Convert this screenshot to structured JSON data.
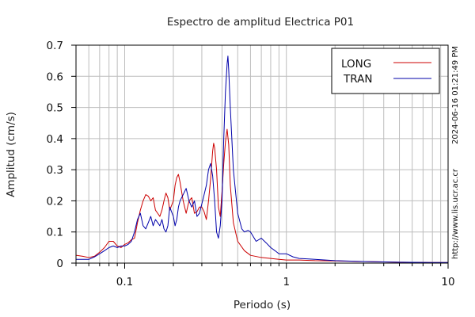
{
  "chart_data": {
    "type": "line",
    "title": "Espectro de amplitud Electrica P01",
    "xlabel": "Periodo (s)",
    "ylabel": "Amplitud (cm/s)",
    "xscale": "log",
    "xlim": [
      0.05,
      10
    ],
    "ylim": [
      0,
      0.7
    ],
    "grid": true,
    "legend_position": "top-right",
    "x_ticks": [
      {
        "value": 0.1,
        "label": "0.1"
      },
      {
        "value": 1,
        "label": "1"
      },
      {
        "value": 10,
        "label": "10"
      }
    ],
    "y_ticks": [
      {
        "value": 0,
        "label": "0"
      },
      {
        "value": 0.1,
        "label": "0.1"
      },
      {
        "value": 0.2,
        "label": "0.2"
      },
      {
        "value": 0.3,
        "label": "0.3"
      },
      {
        "value": 0.4,
        "label": "0.4"
      },
      {
        "value": 0.5,
        "label": "0.5"
      },
      {
        "value": 0.6,
        "label": "0.6"
      },
      {
        "value": 0.7,
        "label": "0.7"
      }
    ],
    "series": [
      {
        "name": "LONG",
        "color": "#cc0000",
        "points": [
          [
            0.05,
            0.025
          ],
          [
            0.055,
            0.022
          ],
          [
            0.06,
            0.018
          ],
          [
            0.065,
            0.022
          ],
          [
            0.07,
            0.035
          ],
          [
            0.075,
            0.05
          ],
          [
            0.08,
            0.07
          ],
          [
            0.085,
            0.07
          ],
          [
            0.09,
            0.055
          ],
          [
            0.095,
            0.05
          ],
          [
            0.1,
            0.06
          ],
          [
            0.105,
            0.065
          ],
          [
            0.11,
            0.075
          ],
          [
            0.115,
            0.08
          ],
          [
            0.12,
            0.13
          ],
          [
            0.125,
            0.17
          ],
          [
            0.13,
            0.2
          ],
          [
            0.135,
            0.22
          ],
          [
            0.14,
            0.215
          ],
          [
            0.145,
            0.2
          ],
          [
            0.15,
            0.21
          ],
          [
            0.155,
            0.17
          ],
          [
            0.16,
            0.16
          ],
          [
            0.165,
            0.15
          ],
          [
            0.17,
            0.17
          ],
          [
            0.175,
            0.2
          ],
          [
            0.18,
            0.225
          ],
          [
            0.185,
            0.21
          ],
          [
            0.19,
            0.17
          ],
          [
            0.2,
            0.2
          ],
          [
            0.205,
            0.25
          ],
          [
            0.21,
            0.275
          ],
          [
            0.215,
            0.285
          ],
          [
            0.22,
            0.26
          ],
          [
            0.23,
            0.2
          ],
          [
            0.24,
            0.16
          ],
          [
            0.25,
            0.2
          ],
          [
            0.26,
            0.21
          ],
          [
            0.27,
            0.16
          ],
          [
            0.28,
            0.165
          ],
          [
            0.29,
            0.18
          ],
          [
            0.3,
            0.18
          ],
          [
            0.31,
            0.165
          ],
          [
            0.32,
            0.14
          ],
          [
            0.33,
            0.2
          ],
          [
            0.34,
            0.27
          ],
          [
            0.35,
            0.36
          ],
          [
            0.355,
            0.385
          ],
          [
            0.36,
            0.37
          ],
          [
            0.37,
            0.3
          ],
          [
            0.38,
            0.18
          ],
          [
            0.39,
            0.15
          ],
          [
            0.4,
            0.23
          ],
          [
            0.41,
            0.32
          ],
          [
            0.42,
            0.39
          ],
          [
            0.43,
            0.43
          ],
          [
            0.44,
            0.38
          ],
          [
            0.45,
            0.25
          ],
          [
            0.47,
            0.13
          ],
          [
            0.5,
            0.07
          ],
          [
            0.55,
            0.04
          ],
          [
            0.6,
            0.025
          ],
          [
            0.7,
            0.018
          ],
          [
            0.8,
            0.015
          ],
          [
            0.9,
            0.012
          ],
          [
            1.0,
            0.01
          ],
          [
            1.2,
            0.01
          ],
          [
            1.5,
            0.008
          ],
          [
            2.0,
            0.007
          ],
          [
            3.0,
            0.005
          ],
          [
            5.0,
            0.003
          ],
          [
            8.0,
            0.002
          ],
          [
            10.0,
            0.002
          ]
        ]
      },
      {
        "name": "TRAN",
        "color": "#0000aa",
        "points": [
          [
            0.05,
            0.012
          ],
          [
            0.06,
            0.012
          ],
          [
            0.065,
            0.02
          ],
          [
            0.07,
            0.03
          ],
          [
            0.075,
            0.04
          ],
          [
            0.08,
            0.05
          ],
          [
            0.085,
            0.055
          ],
          [
            0.09,
            0.05
          ],
          [
            0.095,
            0.055
          ],
          [
            0.1,
            0.055
          ],
          [
            0.105,
            0.06
          ],
          [
            0.11,
            0.07
          ],
          [
            0.115,
            0.1
          ],
          [
            0.12,
            0.14
          ],
          [
            0.125,
            0.16
          ],
          [
            0.13,
            0.12
          ],
          [
            0.135,
            0.11
          ],
          [
            0.14,
            0.13
          ],
          [
            0.145,
            0.15
          ],
          [
            0.15,
            0.12
          ],
          [
            0.155,
            0.14
          ],
          [
            0.16,
            0.13
          ],
          [
            0.165,
            0.12
          ],
          [
            0.17,
            0.14
          ],
          [
            0.175,
            0.11
          ],
          [
            0.18,
            0.1
          ],
          [
            0.185,
            0.12
          ],
          [
            0.19,
            0.18
          ],
          [
            0.2,
            0.15
          ],
          [
            0.205,
            0.12
          ],
          [
            0.21,
            0.14
          ],
          [
            0.215,
            0.18
          ],
          [
            0.22,
            0.2
          ],
          [
            0.23,
            0.22
          ],
          [
            0.24,
            0.24
          ],
          [
            0.25,
            0.2
          ],
          [
            0.26,
            0.18
          ],
          [
            0.27,
            0.2
          ],
          [
            0.28,
            0.15
          ],
          [
            0.29,
            0.16
          ],
          [
            0.3,
            0.19
          ],
          [
            0.31,
            0.22
          ],
          [
            0.32,
            0.25
          ],
          [
            0.33,
            0.3
          ],
          [
            0.34,
            0.32
          ],
          [
            0.35,
            0.28
          ],
          [
            0.36,
            0.2
          ],
          [
            0.37,
            0.1
          ],
          [
            0.38,
            0.08
          ],
          [
            0.39,
            0.12
          ],
          [
            0.4,
            0.2
          ],
          [
            0.41,
            0.4
          ],
          [
            0.42,
            0.55
          ],
          [
            0.43,
            0.64
          ],
          [
            0.435,
            0.665
          ],
          [
            0.44,
            0.62
          ],
          [
            0.45,
            0.5
          ],
          [
            0.47,
            0.3
          ],
          [
            0.5,
            0.16
          ],
          [
            0.53,
            0.11
          ],
          [
            0.55,
            0.1
          ],
          [
            0.58,
            0.105
          ],
          [
            0.6,
            0.1
          ],
          [
            0.65,
            0.07
          ],
          [
            0.7,
            0.08
          ],
          [
            0.75,
            0.065
          ],
          [
            0.8,
            0.05
          ],
          [
            0.85,
            0.04
          ],
          [
            0.9,
            0.03
          ],
          [
            1.0,
            0.03
          ],
          [
            1.1,
            0.02
          ],
          [
            1.2,
            0.015
          ],
          [
            1.5,
            0.012
          ],
          [
            2.0,
            0.008
          ],
          [
            3.0,
            0.005
          ],
          [
            5.0,
            0.003
          ],
          [
            8.0,
            0.002
          ],
          [
            10.0,
            0.002
          ]
        ]
      }
    ]
  },
  "side_text_top": "2024-06-16 01:21:49 PM",
  "side_text_bottom": "http://www.lis.ucr.ac.cr"
}
